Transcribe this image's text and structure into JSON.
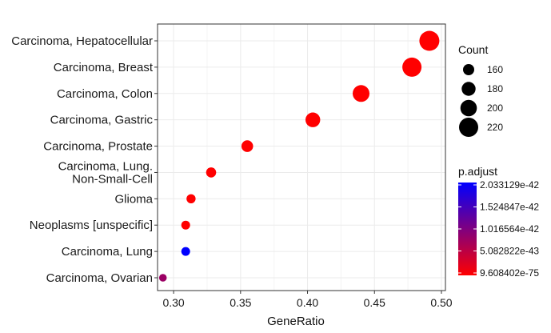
{
  "chart_data": {
    "type": "scatter",
    "title": "",
    "xlabel": "GeneRatio",
    "ylabel": "",
    "xlim": [
      0.288,
      0.503
    ],
    "xticks": [
      0.3,
      0.35,
      0.4,
      0.45,
      0.5
    ],
    "xtick_labels": [
      "0.30",
      "0.35",
      "0.40",
      "0.45",
      "0.50"
    ],
    "grid": true,
    "categories": [
      "Carcinoma, Hepatocellular",
      "Carcinoma, Breast",
      "Carcinoma, Colon",
      "Carcinoma, Gastric",
      "Carcinoma, Prostate",
      "Carcinoma, Lung. Non-Small-Cell",
      "Glioma",
      "Neoplasms [unspecific]",
      "Carcinoma, Lung",
      "Carcinoma, Ovarian"
    ],
    "category_labels": [
      [
        "Carcinoma, Hepatocellular"
      ],
      [
        "Carcinoma, Breast"
      ],
      [
        "Carcinoma, Colon"
      ],
      [
        "Carcinoma, Gastric"
      ],
      [
        "Carcinoma, Prostate"
      ],
      [
        "Carcinoma, Lung.",
        "Non-Small-Cell"
      ],
      [
        "Glioma"
      ],
      [
        "Neoplasms [unspecific]"
      ],
      [
        "Carcinoma, Lung"
      ],
      [
        "Carcinoma, Ovarian"
      ]
    ],
    "points": [
      {
        "category": "Carcinoma, Hepatocellular",
        "gene_ratio": 0.491,
        "count": 226,
        "p_adjust": 9.608402e-75
      },
      {
        "category": "Carcinoma, Breast",
        "gene_ratio": 0.478,
        "count": 220,
        "p_adjust": 9.608402e-75
      },
      {
        "category": "Carcinoma, Colon",
        "gene_ratio": 0.44,
        "count": 202,
        "p_adjust": 9.608402e-75
      },
      {
        "category": "Carcinoma, Gastric",
        "gene_ratio": 0.404,
        "count": 186,
        "p_adjust": 9.608402e-75
      },
      {
        "category": "Carcinoma, Prostate",
        "gene_ratio": 0.355,
        "count": 163,
        "p_adjust": 9.608402e-75
      },
      {
        "category": "Carcinoma, Lung. Non-Small-Cell",
        "gene_ratio": 0.328,
        "count": 151,
        "p_adjust": 9.608402e-75
      },
      {
        "category": "Glioma",
        "gene_ratio": 0.313,
        "count": 144,
        "p_adjust": 9.608402e-75
      },
      {
        "category": "Neoplasms [unspecific]",
        "gene_ratio": 0.309,
        "count": 142,
        "p_adjust": 9.608402e-75
      },
      {
        "category": "Carcinoma, Lung",
        "gene_ratio": 0.309,
        "count": 142,
        "p_adjust": 2.033129e-42
      },
      {
        "category": "Carcinoma, Ovarian",
        "gene_ratio": 0.292,
        "count": 134,
        "p_adjust": 8e-43
      }
    ],
    "size_legend": {
      "title": "Count",
      "breaks": [
        160,
        180,
        200,
        220
      ],
      "labels": [
        "160",
        "180",
        "200",
        "220"
      ]
    },
    "color_legend": {
      "title": "p.adjust",
      "range": [
        9.608402e-75,
        2.033129e-42
      ],
      "labels": [
        "2.033129e-42",
        "1.524847e-42",
        "1.016564e-42",
        "5.082822e-43",
        "9.608402e-75"
      ],
      "low_color": "#ff0000",
      "high_color": "#0000ff"
    },
    "colors": {
      "panel_border": "#333333",
      "grid": "#ebebeb",
      "text": "#1a1a1a"
    }
  }
}
